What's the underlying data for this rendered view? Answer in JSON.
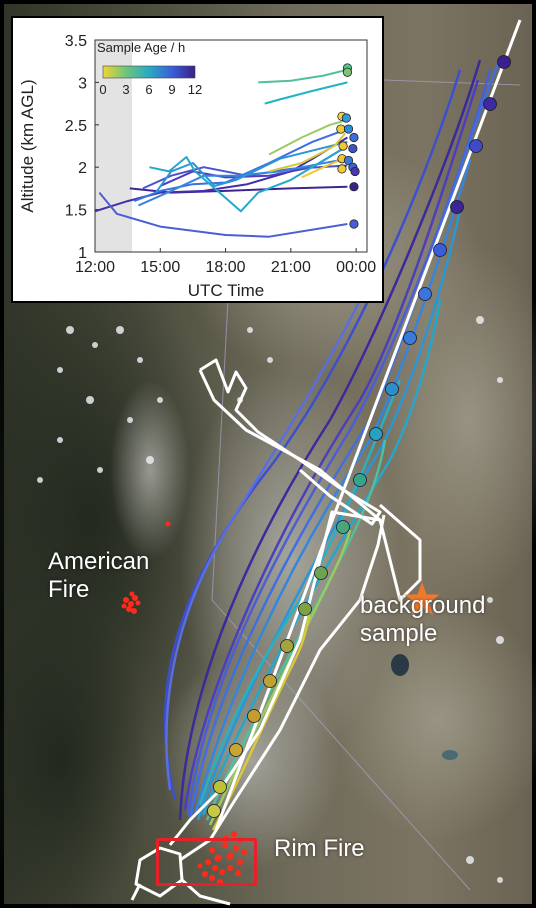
{
  "map": {
    "labels": {
      "american_fire": [
        "American",
        "Fire"
      ],
      "background_sample": [
        "background",
        "sample"
      ],
      "rim_fire": "Rim Fire"
    },
    "colors": {
      "flight_track": "#ffffff",
      "fire_detections": "#ff2a1a",
      "rim_box": "#e8202a",
      "background_star": "#f07a2a"
    },
    "icons": [
      "star-icon"
    ]
  },
  "chart_data": {
    "type": "line",
    "xlabel": "UTC Time",
    "ylabel": "Altitude (km AGL)",
    "xlim": [
      12,
      24.5
    ],
    "ylim": [
      1,
      3.5
    ],
    "xticks": [
      12,
      15,
      18,
      21,
      24
    ],
    "xtick_labels": [
      "12:00",
      "15:00",
      "18:00",
      "21:00",
      "00:00"
    ],
    "yticks": [
      1,
      1.5,
      2,
      2.5,
      3,
      3.5
    ],
    "ytick_labels": [
      "1",
      "1.5",
      "2",
      "2.5",
      "3",
      "3.5"
    ],
    "shaded_region": [
      12,
      13.7
    ],
    "colorbar": {
      "title": "Sample Age / h",
      "ticks": [
        0,
        3,
        6,
        9,
        12
      ],
      "tick_labels": [
        "0",
        "3",
        "6",
        "9",
        "12"
      ],
      "stops": [
        "#f2d534",
        "#6ec47c",
        "#2aa9c4",
        "#3a5fd6",
        "#3b1f8c"
      ]
    },
    "series": [
      {
        "age": 11.5,
        "color": "#3e2596",
        "points": [
          [
            13.6,
            1.75
          ],
          [
            15.5,
            1.7
          ],
          [
            18,
            1.72
          ],
          [
            21,
            1.75
          ],
          [
            23.6,
            1.77
          ]
        ]
      },
      {
        "age": 11,
        "color": "#4430a6",
        "points": [
          [
            12,
            1.48
          ],
          [
            13.5,
            1.6
          ],
          [
            15,
            1.7
          ],
          [
            17,
            1.72
          ],
          [
            19,
            1.8
          ],
          [
            21,
            1.95
          ],
          [
            22,
            2.1
          ],
          [
            23.6,
            2.35
          ]
        ]
      },
      {
        "age": 10.5,
        "color": "#4b3fbb",
        "points": [
          [
            15,
            1.78
          ],
          [
            16.5,
            1.95
          ],
          [
            18,
            1.88
          ],
          [
            20,
            1.9
          ],
          [
            22,
            2.0
          ],
          [
            23.6,
            2.25
          ]
        ]
      },
      {
        "age": 10,
        "color": "#4b52cf",
        "points": [
          [
            14.2,
            1.75
          ],
          [
            15.5,
            1.9
          ],
          [
            17,
            2.0
          ],
          [
            19,
            1.9
          ],
          [
            21,
            1.98
          ],
          [
            23.6,
            2.02
          ]
        ]
      },
      {
        "age": 11,
        "color": "#4a5fd6",
        "points": [
          [
            12.2,
            1.7
          ],
          [
            13,
            1.45
          ],
          [
            15,
            1.3
          ],
          [
            18,
            1.2
          ],
          [
            20,
            1.18
          ],
          [
            23.6,
            1.33
          ]
        ]
      },
      {
        "age": 9,
        "color": "#3f6fe0",
        "points": [
          [
            13.8,
            1.6
          ],
          [
            15,
            1.72
          ],
          [
            16.5,
            1.8
          ],
          [
            18,
            1.82
          ],
          [
            20,
            2.05
          ],
          [
            22,
            2.3
          ],
          [
            23.6,
            2.45
          ]
        ]
      },
      {
        "age": 8,
        "color": "#3585df",
        "points": [
          [
            14,
            1.55
          ],
          [
            15.5,
            1.72
          ],
          [
            17,
            1.9
          ],
          [
            18.5,
            1.9
          ],
          [
            20.5,
            1.95
          ],
          [
            23.6,
            2.1
          ]
        ]
      },
      {
        "age": 7,
        "color": "#2a96d6",
        "points": [
          [
            14.8,
            1.7
          ],
          [
            15.5,
            1.95
          ],
          [
            16.5,
            2.05
          ],
          [
            17.5,
            1.78
          ],
          [
            18.5,
            1.85
          ],
          [
            20.5,
            2.1
          ],
          [
            23.6,
            2.3
          ]
        ]
      },
      {
        "age": 6,
        "color": "#24a7cc",
        "points": [
          [
            14.5,
            2.0
          ],
          [
            15.4,
            1.95
          ],
          [
            16.2,
            2.12
          ],
          [
            16.6,
            1.95
          ],
          [
            17.5,
            1.75
          ],
          [
            18.7,
            1.48
          ],
          [
            19.5,
            1.7
          ],
          [
            21,
            1.85
          ],
          [
            23.6,
            2.25
          ]
        ]
      },
      {
        "age": 5.5,
        "color": "#1fb3c4",
        "points": [
          [
            19.8,
            2.75
          ],
          [
            20.5,
            2.8
          ],
          [
            22,
            2.9
          ],
          [
            23.6,
            3.0
          ]
        ]
      },
      {
        "age": 4,
        "color": "#4fbf9c",
        "points": [
          [
            19.5,
            3.0
          ],
          [
            21,
            3.02
          ],
          [
            22.5,
            3.08
          ],
          [
            23.6,
            3.15
          ]
        ]
      },
      {
        "age": 2.5,
        "color": "#98cc62",
        "points": [
          [
            20,
            2.15
          ],
          [
            21.5,
            2.35
          ],
          [
            22.8,
            2.5
          ],
          [
            23.5,
            2.55
          ]
        ]
      },
      {
        "age": 1.5,
        "color": "#d9c93a",
        "points": [
          [
            20,
            1.95
          ],
          [
            21.5,
            2.05
          ],
          [
            23,
            2.25
          ],
          [
            23.5,
            2.4
          ]
        ]
      },
      {
        "age": 0.5,
        "color": "#f2c531",
        "points": [
          [
            21.5,
            1.88
          ],
          [
            22.5,
            2.0
          ],
          [
            23.4,
            2.1
          ]
        ]
      }
    ],
    "endpoints": [
      {
        "x": 23.6,
        "y": 3.17,
        "color": "#55c28f"
      },
      {
        "x": 23.6,
        "y": 3.12,
        "color": "#7bc573"
      },
      {
        "x": 23.35,
        "y": 2.6,
        "color": "#f0d23a"
      },
      {
        "x": 23.55,
        "y": 2.58,
        "color": "#3598d8"
      },
      {
        "x": 23.3,
        "y": 2.45,
        "color": "#f0cd38"
      },
      {
        "x": 23.65,
        "y": 2.45,
        "color": "#2a8ed8"
      },
      {
        "x": 23.9,
        "y": 2.35,
        "color": "#3f6cd8"
      },
      {
        "x": 23.4,
        "y": 2.25,
        "color": "#f0c834"
      },
      {
        "x": 23.85,
        "y": 2.22,
        "color": "#4150c8"
      },
      {
        "x": 23.35,
        "y": 2.1,
        "color": "#f2c530"
      },
      {
        "x": 23.65,
        "y": 2.08,
        "color": "#3a78dc"
      },
      {
        "x": 23.35,
        "y": 1.98,
        "color": "#eecb38"
      },
      {
        "x": 23.85,
        "y": 2.0,
        "color": "#3d62d6"
      },
      {
        "x": 23.95,
        "y": 1.95,
        "color": "#4b36b0"
      },
      {
        "x": 23.9,
        "y": 1.77,
        "color": "#3a208c"
      },
      {
        "x": 23.9,
        "y": 1.33,
        "color": "#4a5cd6"
      }
    ]
  }
}
